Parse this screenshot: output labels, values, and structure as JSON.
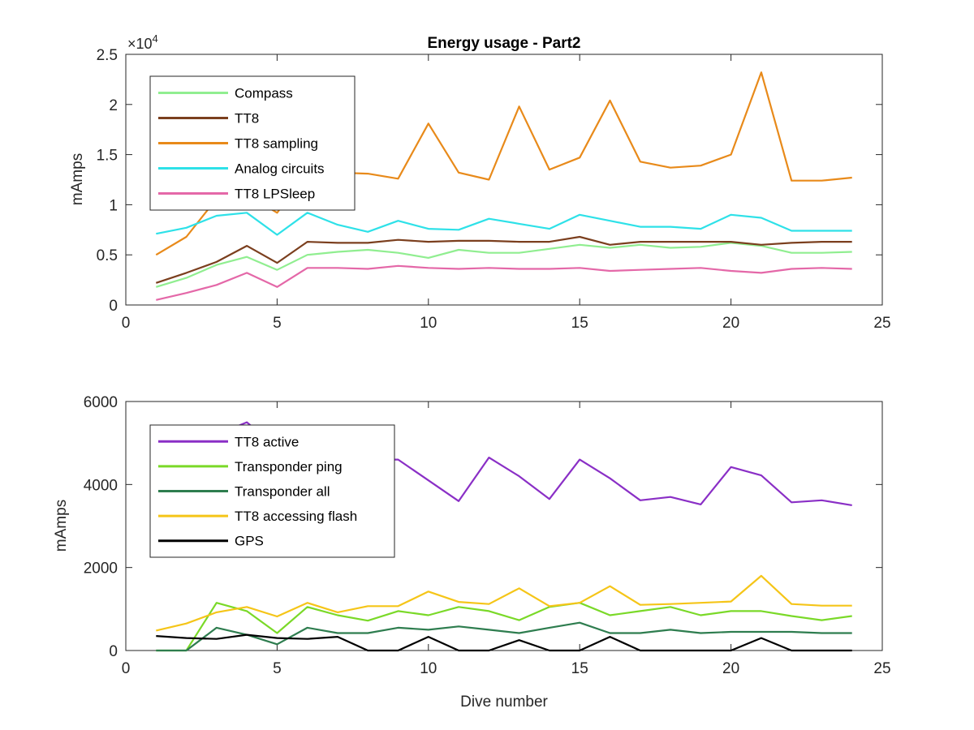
{
  "chart_data": [
    {
      "type": "line",
      "title": "Energy usage - Part2",
      "xlabel": "",
      "ylabel": "mAmps",
      "multiplier": "×10",
      "exponent": "4",
      "xlim": [
        0,
        25
      ],
      "ylim": [
        0,
        25000
      ],
      "xticks": [
        "0",
        "5",
        "10",
        "15",
        "20",
        "25"
      ],
      "yticks": [
        "0",
        "0.5",
        "1",
        "1.5",
        "2",
        "2.5"
      ],
      "legend_position": "top-left",
      "x": [
        1,
        2,
        3,
        4,
        5,
        6,
        7,
        8,
        9,
        10,
        11,
        12,
        13,
        14,
        15,
        16,
        17,
        18,
        19,
        20,
        21,
        22,
        23,
        24
      ],
      "series": [
        {
          "name": "Compass",
          "color": "#90ee90",
          "values": [
            1800,
            2700,
            4000,
            4800,
            3500,
            5000,
            5300,
            5500,
            5200,
            4700,
            5500,
            5200,
            5200,
            5600,
            6000,
            5700,
            6000,
            5700,
            5800,
            6200,
            5900,
            5200,
            5200,
            5300
          ]
        },
        {
          "name": "TT8",
          "color": "#7b3f1e",
          "values": [
            2200,
            3200,
            4300,
            5900,
            4200,
            6300,
            6200,
            6200,
            6500,
            6300,
            6400,
            6400,
            6300,
            6300,
            6800,
            6000,
            6300,
            6300,
            6300,
            6300,
            6000,
            6200,
            6300,
            6300
          ]
        },
        {
          "name": "TT8 sampling",
          "color": "#e88a1a",
          "values": [
            5000,
            6800,
            10600,
            11000,
            9200,
            13200,
            13200,
            13100,
            12600,
            18100,
            13200,
            12500,
            19800,
            13500,
            14700,
            20400,
            14300,
            13700,
            13900,
            15000,
            23200,
            12400,
            12400,
            12700
          ]
        },
        {
          "name": "Analog circuits",
          "color": "#2ee1e8",
          "values": [
            7100,
            7700,
            8900,
            9200,
            7000,
            9200,
            8000,
            7300,
            8400,
            7600,
            7500,
            8600,
            8100,
            7600,
            9000,
            8400,
            7800,
            7800,
            7600,
            9000,
            8700,
            7400,
            7400,
            7400
          ]
        },
        {
          "name": "TT8 LPSleep",
          "color": "#e468a8",
          "values": [
            500,
            1200,
            2000,
            3200,
            1800,
            3700,
            3700,
            3600,
            3900,
            3700,
            3600,
            3700,
            3600,
            3600,
            3700,
            3400,
            3500,
            3600,
            3700,
            3400,
            3200,
            3600,
            3700,
            3600
          ]
        }
      ]
    },
    {
      "type": "line",
      "title": "",
      "xlabel": "Dive number",
      "ylabel": "mAmps",
      "xlim": [
        0,
        25
      ],
      "ylim": [
        0,
        6000
      ],
      "xticks": [
        "0",
        "5",
        "10",
        "15",
        "20",
        "25"
      ],
      "yticks": [
        "0",
        "2000",
        "4000",
        "6000"
      ],
      "legend_position": "top-left",
      "x": [
        1,
        2,
        3,
        4,
        5,
        6,
        7,
        8,
        9,
        10,
        11,
        12,
        13,
        14,
        15,
        16,
        17,
        18,
        19,
        20,
        21,
        22,
        23,
        24
      ],
      "series": [
        {
          "name": "TT8 active",
          "color": "#8a2fc6",
          "values": [
            4700,
            5000,
            5200,
            5500,
            4900,
            4800,
            4800,
            4600,
            4600,
            4100,
            3600,
            4650,
            4200,
            3650,
            4600,
            4150,
            3620,
            3700,
            3520,
            4420,
            4220,
            3570,
            3620,
            3500
          ]
        },
        {
          "name": "Transponder ping",
          "color": "#7ad928",
          "values": [
            0,
            0,
            1150,
            950,
            420,
            1050,
            850,
            720,
            950,
            850,
            1050,
            950,
            730,
            1050,
            1150,
            850,
            950,
            1050,
            850,
            950,
            950,
            830,
            730,
            830
          ]
        },
        {
          "name": "Transponder all",
          "color": "#2e7d4f",
          "values": [
            0,
            0,
            550,
            380,
            150,
            550,
            420,
            420,
            550,
            500,
            580,
            500,
            420,
            550,
            670,
            420,
            420,
            500,
            420,
            450,
            450,
            450,
            420,
            420
          ]
        },
        {
          "name": "TT8 accessing flash",
          "color": "#f5c518",
          "values": [
            480,
            650,
            920,
            1050,
            820,
            1150,
            920,
            1070,
            1070,
            1420,
            1170,
            1120,
            1500,
            1070,
            1150,
            1550,
            1100,
            1120,
            1150,
            1180,
            1800,
            1120,
            1080,
            1080
          ]
        },
        {
          "name": "GPS",
          "color": "#000000",
          "values": [
            350,
            300,
            280,
            380,
            300,
            280,
            330,
            0,
            0,
            330,
            0,
            0,
            250,
            0,
            0,
            330,
            0,
            0,
            0,
            0,
            300,
            0,
            0,
            0
          ]
        }
      ]
    }
  ]
}
